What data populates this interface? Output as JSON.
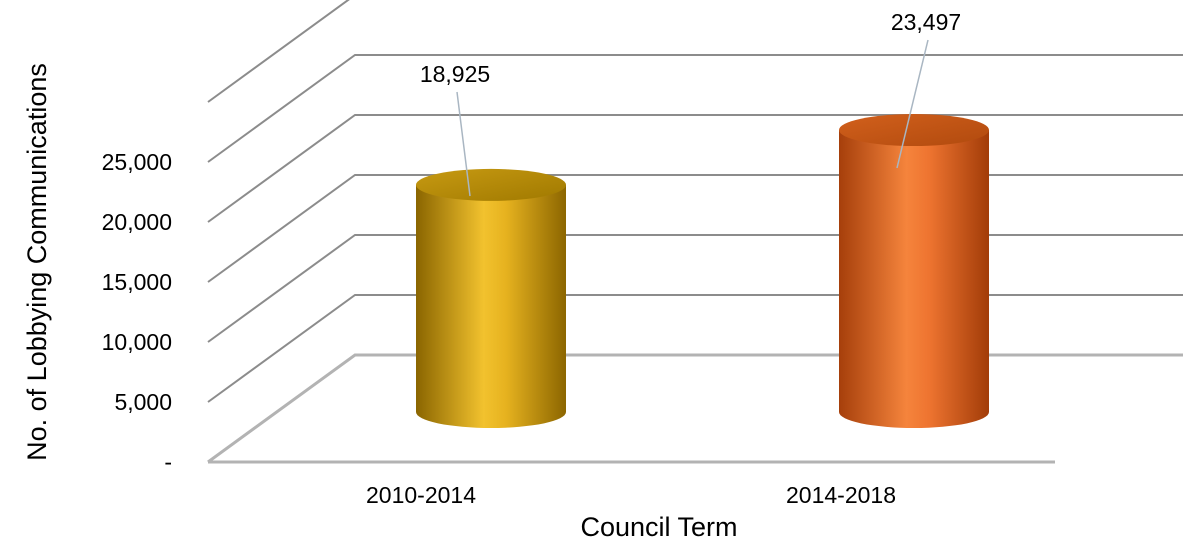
{
  "chart_data": {
    "type": "bar",
    "style": "3d-cylinder",
    "title": "",
    "xlabel": "Council Term",
    "ylabel": "No. of Lobbying Communications",
    "categories": [
      "2010-2014",
      "2014-2018"
    ],
    "series": [
      {
        "values": [
          18925,
          23497
        ]
      }
    ],
    "data_labels": [
      "18,925",
      "23,497"
    ],
    "bar_colors": [
      "#d9a71a",
      "#e8671f"
    ],
    "ylim": [
      0,
      25000
    ],
    "yticks": [
      0,
      5000,
      10000,
      15000,
      20000,
      25000
    ],
    "ytick_labels": [
      "-",
      "5,000",
      "10,000",
      "15,000",
      "20,000",
      "25,000"
    ],
    "grid": true,
    "legend": "none"
  }
}
